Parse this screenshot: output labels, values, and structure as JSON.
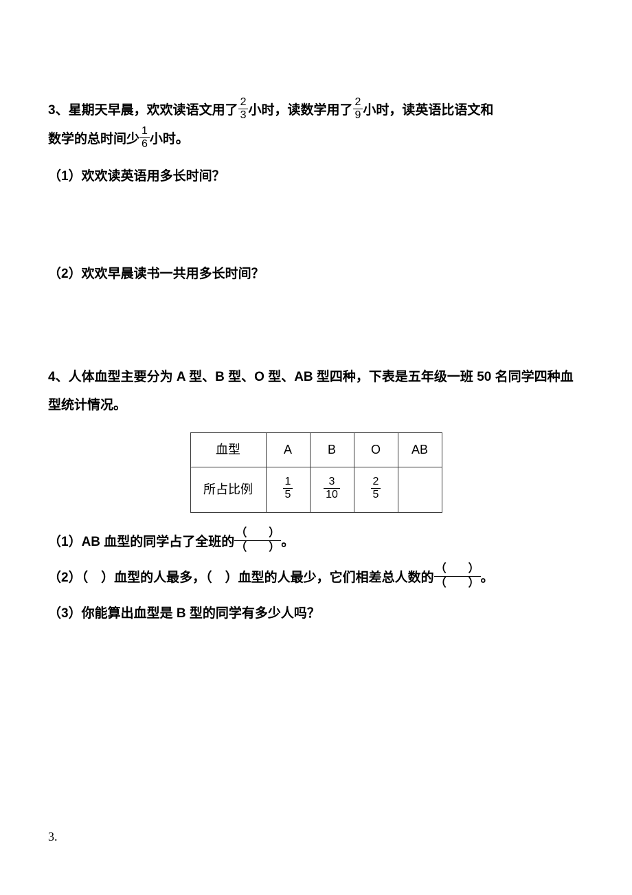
{
  "q3": {
    "text1": "3、星期天早晨，欢欢读语文用了",
    "f1_num": "2",
    "f1_den": "3",
    "text2": "小时，读数学用了",
    "f2_num": "2",
    "f2_den": "9",
    "text3": "小时，读英语比语文和",
    "text4": "数学的总时间少",
    "f3_num": "1",
    "f3_den": "6",
    "text5": "小时。",
    "sub1": "（1）欢欢读英语用多长时间？",
    "sub2": "（2）欢欢早晨读书一共用多长时间？"
  },
  "q4": {
    "text": "4、人体血型主要分为 A 型、B 型、O 型、AB 型四种，下表是五年级一班 50 名同学四种血型统计情况。",
    "table": {
      "r1": [
        "血型",
        "A",
        "B",
        "O",
        "AB"
      ],
      "r2_label": "所占比例",
      "cells": [
        {
          "num": "1",
          "den": "5"
        },
        {
          "num": "3",
          "den": "10"
        },
        {
          "num": "2",
          "den": "5"
        }
      ]
    },
    "sub1_a": "（1）AB 血型的同学占了全班的",
    "sub1_b": "。",
    "sub2_a": "（2）（　）血型的人最多，（　）血型的人最少，它们相差总人数的",
    "sub2_b": "。",
    "sub3": "（3）你能算出血型是 B 型的同学有多少人吗？",
    "paren_top": "（　　）",
    "paren_bot": "（　　）"
  },
  "footer": "3."
}
